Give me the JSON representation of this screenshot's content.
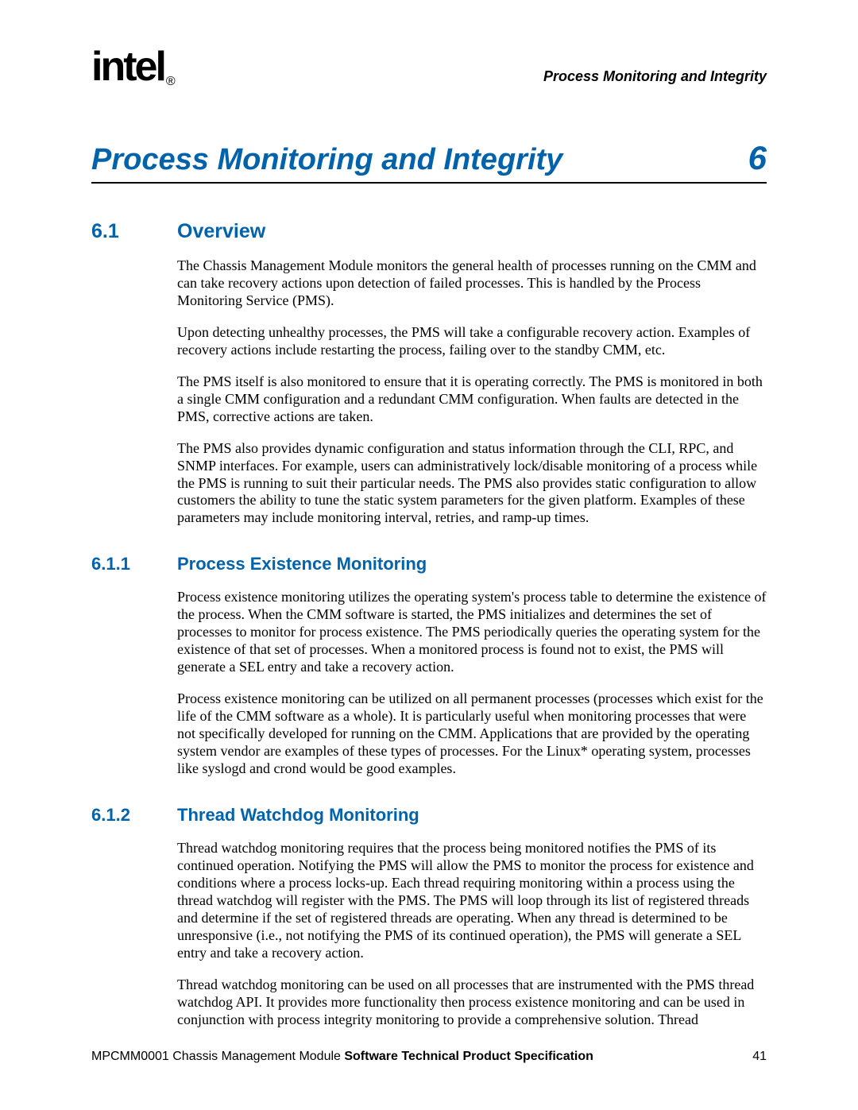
{
  "header": {
    "logo_text": "intel",
    "logo_reg": "®",
    "running_title": "Process Monitoring and Integrity"
  },
  "chapter": {
    "title": "Process Monitoring and Integrity",
    "number": "6"
  },
  "sections": {
    "s1": {
      "num": "6.1",
      "title": "Overview",
      "p1": "The Chassis Management Module monitors the general health of processes running on the CMM and can take recovery actions upon detection of failed processes. This is handled by the Process Monitoring Service (PMS).",
      "p2": "Upon detecting unhealthy processes, the PMS will take a configurable recovery action. Examples of recovery actions include restarting the process, failing over to the standby CMM, etc.",
      "p3": "The PMS itself is also monitored to ensure that it is operating correctly. The PMS is monitored in both a single CMM configuration and a redundant CMM configuration. When faults are detected in the PMS, corrective actions are taken.",
      "p4": "The PMS also provides dynamic configuration and status information through the CLI, RPC, and SNMP interfaces. For example, users can administratively lock/disable monitoring of a process while the PMS is running to suit their particular needs. The PMS also provides static configuration to allow customers the ability to tune the static system parameters for the given platform. Examples of these parameters may include monitoring interval, retries, and ramp-up times."
    },
    "s11": {
      "num": "6.1.1",
      "title": "Process Existence Monitoring",
      "p1": "Process existence monitoring utilizes the operating system's process table to determine the existence of the process. When the CMM software is started, the PMS initializes and determines the set of processes to monitor for process existence. The PMS periodically queries the operating system for the existence of that set of processes. When a monitored process is found not to exist, the PMS will generate a SEL entry and take a recovery action.",
      "p2": "Process existence monitoring can be utilized on all permanent processes (processes which exist for the life of the CMM software as a whole). It is particularly useful when monitoring processes that were not specifically developed for running on the CMM. Applications that are provided by the operating system vendor are examples of these types of processes. For the Linux* operating system, processes like syslogd and crond would be good examples."
    },
    "s12": {
      "num": "6.1.2",
      "title": "Thread Watchdog Monitoring",
      "p1": "Thread watchdog monitoring requires that the process being monitored notifies the PMS of its continued operation. Notifying the PMS will allow the PMS to monitor the process for existence and conditions where a process locks-up. Each thread requiring monitoring within a process using the thread watchdog will register with the PMS. The PMS will loop through its list of registered threads and determine if the set of registered threads are operating. When any thread is determined to be unresponsive (i.e., not notifying the PMS of its continued operation), the PMS will generate a SEL entry and take a recovery action.",
      "p2": "Thread watchdog monitoring can be used on all processes that are instrumented with the PMS thread watchdog API. It provides more functionality then process existence monitoring and can be used in conjunction with process integrity monitoring to provide a comprehensive solution. Thread"
    }
  },
  "footer": {
    "doc_id": "MPCMM0001 Chassis Management Module ",
    "doc_title_bold": "Software Technical Product Specification",
    "page_number": "41"
  },
  "colors": {
    "heading_blue": "#0062aa",
    "text_black": "#000000",
    "background": "#ffffff"
  },
  "typography": {
    "chapter_title_fontsize": 38,
    "chapter_number_fontsize": 42,
    "section_fontsize": 25,
    "subsection_fontsize": 22,
    "body_fontsize": 18,
    "header_right_fontsize": 18,
    "footer_fontsize": 16
  }
}
